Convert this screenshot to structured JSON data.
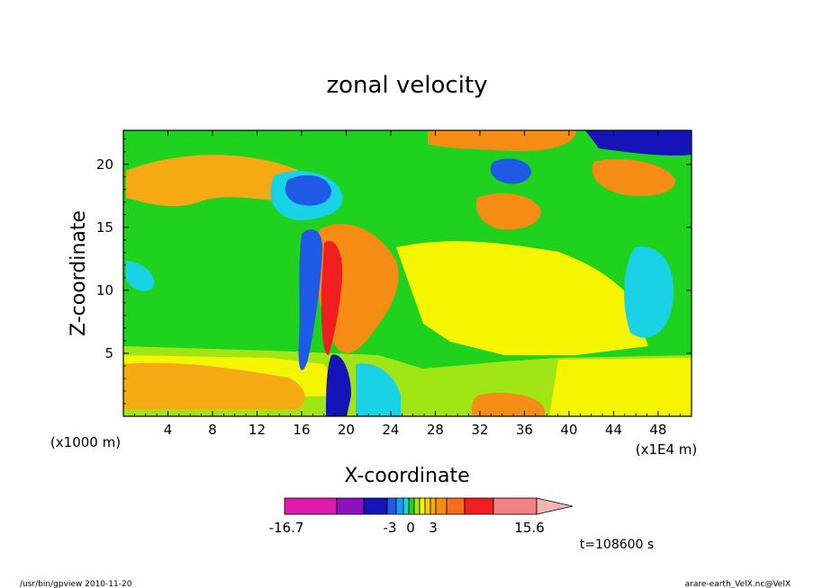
{
  "chart_data": {
    "type": "heatmap",
    "title": "zonal velocity",
    "xlabel": "X-coordinate",
    "ylabel": "Z-coordinate",
    "x_ticks": [
      "4",
      "8",
      "12",
      "16",
      "20",
      "24",
      "28",
      "32",
      "36",
      "40",
      "44",
      "48"
    ],
    "y_ticks": [
      "5",
      "10",
      "15",
      "20"
    ],
    "x_unit_left": "(x1000 m)",
    "x_unit_right": "(x1E4 m)",
    "xlim": [
      0,
      51
    ],
    "ylim": [
      0,
      22.7
    ],
    "colorbar": {
      "min_label": "-16.7",
      "max_label": "15.6",
      "mid_labels": [
        "-3",
        "0",
        "3"
      ],
      "levels": [
        -16.7,
        -12,
        -8,
        -5,
        -3,
        -2,
        -1,
        0,
        1,
        2,
        3,
        4,
        6,
        9,
        12,
        15.6
      ],
      "colors": [
        "#e01aa8",
        "#8a12c0",
        "#1414b8",
        "#1e5ae6",
        "#14a0f0",
        "#19d2e6",
        "#1ed21e",
        "#a0e614",
        "#f5f500",
        "#f5d200",
        "#f5aa14",
        "#f58c14",
        "#f56e1e",
        "#f01e1e",
        "#f08282",
        "#f5b4b4"
      ]
    },
    "regions": [
      {
        "label": "background",
        "value": 0.5
      },
      {
        "label": "upper-left orange",
        "value": 2.5
      },
      {
        "label": "upper blue patch",
        "value": -4
      },
      {
        "label": "central jet orange",
        "value": 4
      },
      {
        "label": "central jet blue",
        "value": -6
      },
      {
        "label": "lower orange band",
        "value": 3
      },
      {
        "label": "top-right blue",
        "value": -5
      },
      {
        "label": "top-center orange",
        "value": 5
      },
      {
        "label": "right orange patches",
        "value": 5
      }
    ]
  },
  "annotations": {
    "time": "t=108600 s",
    "footer_left": "/usr/bin/gpview   2010-11-20",
    "footer_right": "arare-earth_VelX.nc@VelX"
  }
}
